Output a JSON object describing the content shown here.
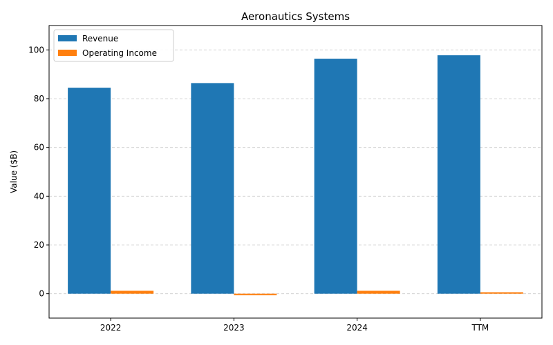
{
  "chart_data": {
    "type": "bar",
    "title": "Aeronautics Systems",
    "xlabel": "",
    "ylabel": "Value ($B)",
    "categories": [
      "2022",
      "2023",
      "2024",
      "TTM"
    ],
    "series": [
      {
        "name": "Revenue",
        "color": "#1f77b4",
        "values": [
          84.5,
          86.4,
          96.4,
          97.8
        ]
      },
      {
        "name": "Operating Income",
        "color": "#ff7f0e",
        "values": [
          1.2,
          -0.6,
          1.2,
          0.6
        ]
      }
    ],
    "ylim": [
      -10,
      110
    ],
    "yticks": [
      0,
      20,
      40,
      60,
      80,
      100
    ],
    "grid": true,
    "legend": "top-left"
  }
}
